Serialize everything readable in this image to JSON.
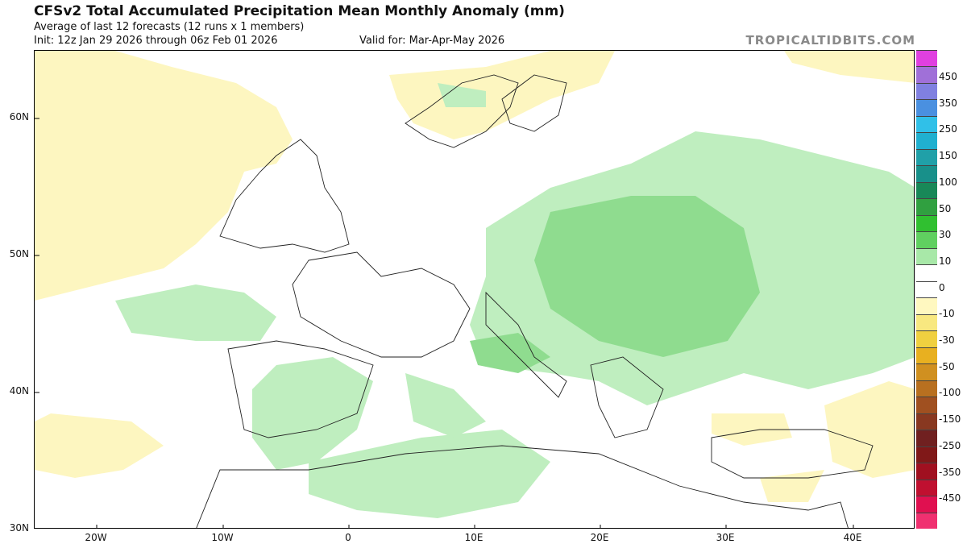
{
  "header": {
    "title": "CFSv2 Total Accumulated Precipitation Mean Monthly Anomaly (mm)",
    "line2": "Average of last 12 forecasts (12 runs x 1 members)",
    "line3": "Init: 12z Jan 29 2026 through 06z Feb 01 2026",
    "valid": "Valid for: Mar-Apr-May 2026",
    "brand": "TROPICALTIDBITS.COM"
  },
  "axes": {
    "lat_labels": [
      "60N",
      "50N",
      "40N",
      "30N"
    ],
    "lon_labels": [
      "20W",
      "10W",
      "0",
      "10E",
      "20E",
      "30E",
      "40E"
    ]
  },
  "colorbar": {
    "labels": [
      "450",
      "350",
      "250",
      "150",
      "100",
      "50",
      "30",
      "10",
      "0",
      "-10",
      "-30",
      "-50",
      "-100",
      "-150",
      "-250",
      "-350",
      "-450"
    ],
    "colors": [
      "#e040e0",
      "#a070d8",
      "#8080e0",
      "#4a90e0",
      "#30c0e8",
      "#20b0d0",
      "#20a0a8",
      "#18908a",
      "#188858",
      "#30a040",
      "#30c030",
      "#60d060",
      "#a8e8a8",
      "#ffffff",
      "#ffffff",
      "#fff8c0",
      "#f8e880",
      "#f0d040",
      "#e8b020",
      "#d09020",
      "#b87020",
      "#a05020",
      "#883820",
      "#702020",
      "#801818",
      "#a01020",
      "#c01030",
      "#e01050",
      "#f03070"
    ]
  },
  "regions": {
    "dry": [
      "M0 0 L100 0 L170 20 L250 40 L300 70 L320 110 L300 140 L260 150 L240 200 L200 240 L160 270 L100 285 L40 300 L0 310 Z",
      "M440 30 L560 20 L640 0 L720 0 L700 40 L640 60 L600 80 L560 100 L520 110 L470 90 L450 60 Z",
      "M930 0 L1093 0 L1093 40 L1000 30 L940 15 Z",
      "M980 440 L1060 410 L1093 420 L1093 520 L1040 530 L990 510 Z",
      "M840 450 L930 450 L940 480 L880 490 L840 475 Z",
      "M20 450 L120 460 L160 490 L110 520 L50 530 L0 520 L0 460 Z",
      "M900 530 L980 520 L960 560 L910 560 Z"
    ],
    "wet": [
      "M560 220 L640 170 L740 140 L820 100 L900 110 L980 130 L1060 150 L1093 170 L1093 380 L1040 400 L960 420 L880 400 L820 420 L760 440 L700 410 L640 400 L560 390 L540 340 L560 280 Z",
      "M300 390 L370 380 L420 410 L400 470 L350 510 L300 520 L270 480 L270 420 Z",
      "M340 510 L480 480 L580 470 L640 510 L600 560 L500 580 L400 570 L340 550 Z",
      "M100 310 L200 290 L260 300 L300 330 L280 360 L200 360 L120 350 Z",
      "M460 400 L520 420 L560 460 L520 480 L470 460 Z",
      "M500 40 L560 50 L560 70 L510 70 Z"
    ],
    "wet2": [
      "M640 200 L740 180 L820 180 L880 220 L900 300 L860 360 L780 380 L700 360 L640 320 L620 260 Z",
      "M540 360 L600 350 L640 380 L600 400 L550 390 Z"
    ],
    "coast": [
      "M230 230 L250 185 L280 150 L300 130 L330 110 L350 130 L360 170 L380 200 L390 240 L360 250 L320 240 L280 245 Z",
      "M340 260 L400 250 L430 280 L480 270 L520 290 L540 320 L520 360 L480 380 L430 380 L380 360 L330 330 L320 290 Z",
      "M240 370 L300 360 L360 370 L420 390 L400 450 L350 470 L290 480 L260 470 L250 420 Z",
      "M460 90 L490 70 L530 40 L570 30 L600 40 L590 70 L560 100 L520 120 L490 110 Z",
      "M580 60 L620 30 L660 40 L650 80 L620 100 L590 90 Z",
      "M560 300 L600 340 L620 380 L660 410 L650 430 L620 400 L590 370 L560 340 Z",
      "M690 390 L730 380 L780 420 L760 470 L720 480 L700 440 Z",
      "M840 480 L900 470 L980 470 L1040 490 L1030 520 L960 530 L880 530 L840 510 Z",
      "M230 520 L340 520 L460 500 L580 490 L700 500 L800 540 L880 560 L960 570 L1000 560 L1010 594 L200 594 Z"
    ]
  }
}
